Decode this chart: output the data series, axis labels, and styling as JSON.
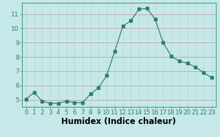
{
  "x": [
    0,
    1,
    2,
    3,
    4,
    5,
    6,
    7,
    8,
    9,
    10,
    11,
    12,
    13,
    14,
    15,
    16,
    17,
    18,
    19,
    20,
    21,
    22,
    23
  ],
  "y": [
    5.05,
    5.5,
    4.9,
    4.75,
    4.75,
    4.9,
    4.8,
    4.8,
    5.4,
    5.85,
    6.7,
    8.4,
    10.15,
    10.55,
    11.35,
    11.4,
    10.65,
    9.0,
    8.05,
    7.7,
    7.55,
    7.3,
    6.9,
    6.55
  ],
  "xlabel": "Humidex (Indice chaleur)",
  "bg_color": "#c6e8e8",
  "grid_color_h": "#c0a8a8",
  "grid_color_v": "#b8d8d8",
  "line_color": "#2e7d6e",
  "marker_color": "#2e7d6e",
  "ylim": [
    4.5,
    11.8
  ],
  "xlim": [
    -0.5,
    23.5
  ],
  "yticks": [
    5,
    6,
    7,
    8,
    9,
    10,
    11
  ],
  "xticks": [
    0,
    1,
    2,
    3,
    4,
    5,
    6,
    7,
    8,
    9,
    10,
    11,
    12,
    13,
    14,
    15,
    16,
    17,
    18,
    19,
    20,
    21,
    22,
    23
  ],
  "tick_fontsize": 6.5,
  "xlabel_fontsize": 8.5
}
